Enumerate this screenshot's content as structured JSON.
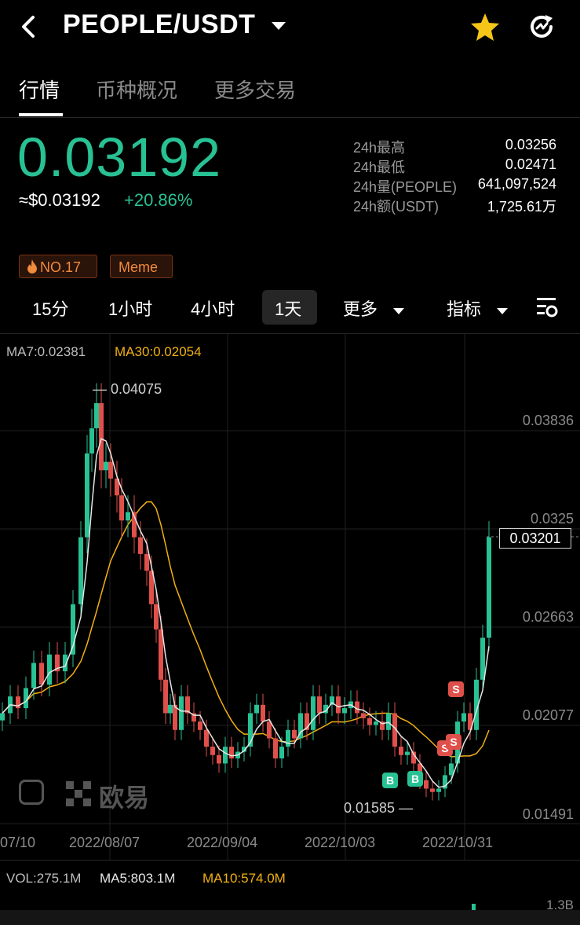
{
  "header": {
    "title": "PEOPLE/USDT"
  },
  "tabs": [
    {
      "label": "行情"
    },
    {
      "label": "币种概况"
    },
    {
      "label": "更多交易"
    }
  ],
  "ticker": {
    "last_price": "0.03192",
    "usd_price": "≈$0.03192",
    "change_pct": "+20.86%",
    "stats": [
      {
        "k": "24h最高",
        "v": "0.03256"
      },
      {
        "k": "24h最低",
        "v": "0.02471"
      },
      {
        "k": "24h量(PEOPLE)",
        "v": "641,097,524"
      },
      {
        "k": "24h额(USDT)",
        "v": "1,725.61万"
      }
    ],
    "tags": {
      "rank": "NO.17",
      "category": "Meme"
    }
  },
  "intervals": {
    "i15": "15分",
    "i1h": "1小时",
    "i4h": "4小时",
    "i1d": "1天",
    "more": "更多",
    "indicator": "指标"
  },
  "chart": {
    "ma7": "MA7:0.02381",
    "ma30": "MA30:0.02054",
    "price_labels": [
      "0.03836",
      "0.0325",
      "0.02663",
      "0.02077",
      "0.01491"
    ],
    "current_price_tag": "0.03201",
    "high_marker": "0.04075",
    "low_marker": "0.01585",
    "dates": [
      "07/10",
      "2022/08/07",
      "2022/09/04",
      "2022/10/03",
      "2022/10/31"
    ],
    "watermark": "欧易",
    "trade_markers": {
      "buy": "B",
      "sell": "S"
    }
  },
  "volume": {
    "vol": "VOL:275.1M",
    "ma5": "MA5:803.1M",
    "ma10": "MA10:574.0M",
    "axis_top": "1.3B"
  },
  "colors": {
    "up": "#28c194",
    "down": "#e0504b",
    "ma7": "#e6e6e6",
    "ma30": "#f2b012",
    "accent": "#f08a3c",
    "star": "#f5c518"
  },
  "chart_data": {
    "type": "candlestick",
    "x_range": [
      "2022/07/10",
      "2022/11/06"
    ],
    "ylim": [
      0.01491,
      0.04075
    ],
    "y_ticks": [
      0.03836,
      0.0325,
      0.02663,
      0.02077,
      0.01491
    ],
    "period_high": 0.04075,
    "period_low": 0.01585,
    "last_close": 0.03201
  }
}
